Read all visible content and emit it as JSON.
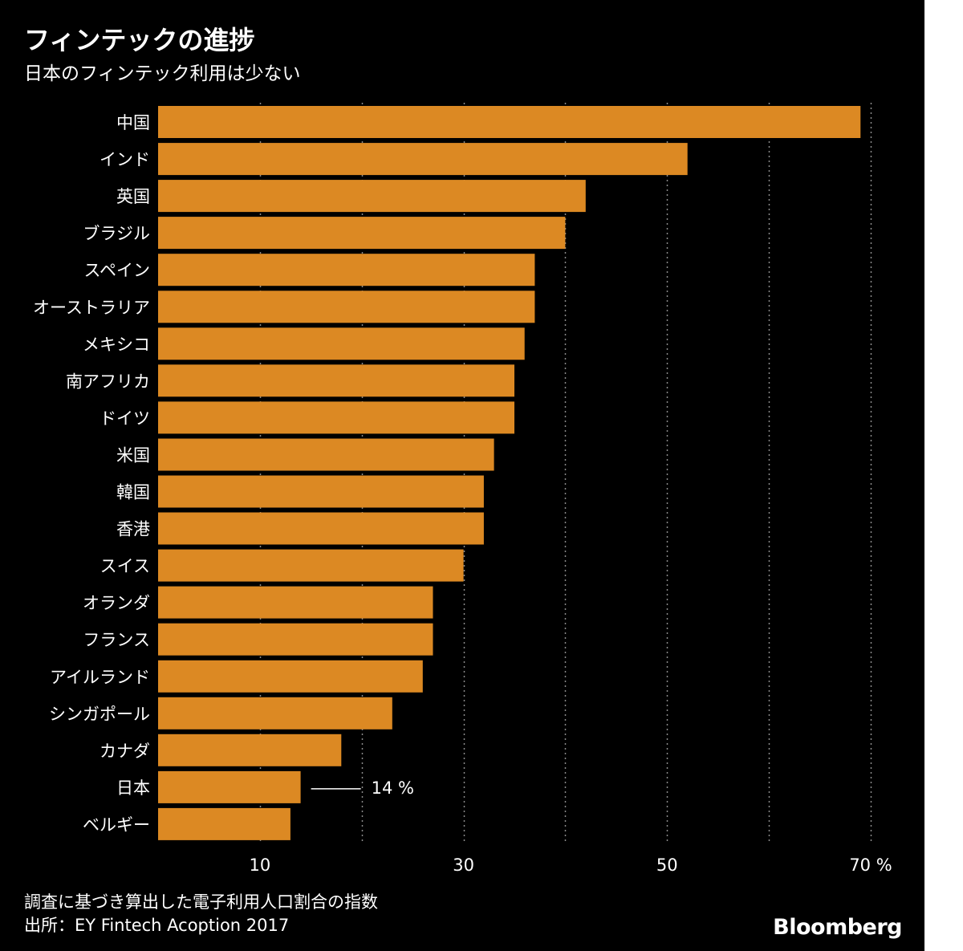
{
  "header": {
    "title": "フィンテックの進捗",
    "subtitle": "日本のフィンテック利用は少ない"
  },
  "footer": {
    "note": "調査に基づき算出した電子利用人口割合の指数",
    "source": "出所：EY Fintech Acoption 2017",
    "logo": "Bloomberg"
  },
  "colors": {
    "background": "#000000",
    "bar": "#dc8923",
    "text": "#ffffff",
    "grid": "#8a8a8a"
  },
  "chart_data": {
    "type": "bar",
    "orientation": "horizontal",
    "title": "フィンテックの進捗",
    "subtitle": "日本のフィンテック利用は少ない",
    "xlabel": "",
    "ylabel": "",
    "unit": "%",
    "xlim": [
      0,
      70
    ],
    "grid": true,
    "tick_values": [
      10,
      30,
      50,
      70
    ],
    "tick_labels": [
      "10",
      "30",
      "50",
      "70 %"
    ],
    "categories": [
      "中国",
      "インド",
      "英国",
      "ブラジル",
      "スペイン",
      "オーストラリア",
      "メキシコ",
      "南アフリカ",
      "ドイツ",
      "米国",
      "韓国",
      "香港",
      "スイス",
      "オランダ",
      "フランス",
      "アイルランド",
      "シンガポール",
      "カナダ",
      "日本",
      "ベルギー"
    ],
    "values": [
      69,
      52,
      42,
      40,
      37,
      37,
      36,
      35,
      35,
      33,
      32,
      32,
      30,
      27,
      27,
      26,
      23,
      18,
      14,
      13
    ],
    "annotation": {
      "category": "日本",
      "label": "14 %"
    }
  }
}
